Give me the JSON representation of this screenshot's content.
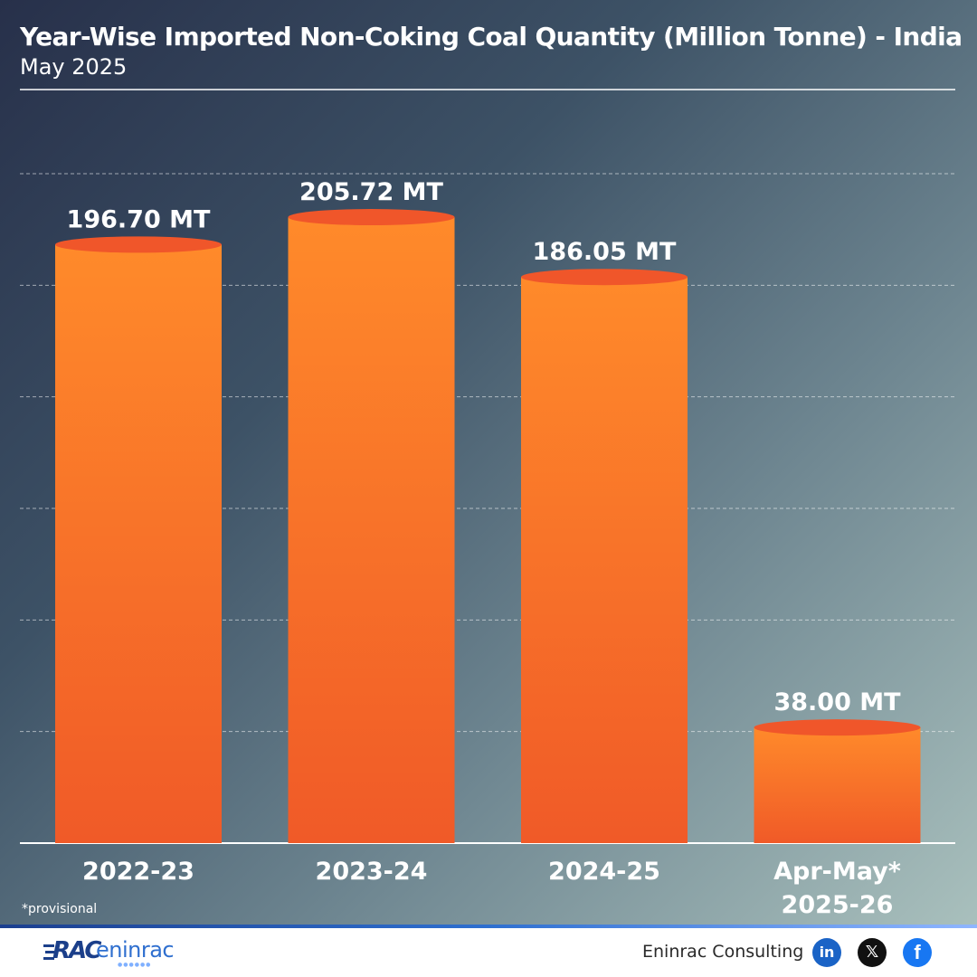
{
  "header": {
    "title": "Year-Wise Imported Non-Coking Coal Quantity (Million Tonne) - India",
    "subtitle": "May 2025"
  },
  "chart_data": {
    "type": "bar",
    "title": "Year-Wise Imported Non-Coking Coal Quantity (Million Tonne) - India",
    "subtitle": "May 2025",
    "categories": [
      "2022-23",
      "2023-24",
      "2024-25",
      "Apr-May* 2025-26"
    ],
    "category_lines": [
      [
        "2022-23"
      ],
      [
        "2023-24"
      ],
      [
        "2024-25"
      ],
      [
        "Apr-May*",
        "2025-26"
      ]
    ],
    "values": [
      196.7,
      205.72,
      186.05,
      38.0
    ],
    "value_labels": [
      "196.70 MT",
      "205.72 MT",
      "186.05 MT",
      "38.00 MT"
    ],
    "unit": "MT",
    "ylim": [
      0,
      220
    ],
    "grid": true,
    "legend": "none",
    "bar_color_top": "#ff8a2a",
    "bar_color_bottom": "#f05a28",
    "bar_cap_color": "#f0562a"
  },
  "footnote": "*provisional",
  "footer": {
    "logo_text": "RAC",
    "logo_word": "eninrac",
    "brand_name": "Eninrac Consulting",
    "social_icons": [
      "linkedin-icon",
      "x-icon",
      "facebook-icon"
    ],
    "linkedin_glyph": "in",
    "x_glyph": "𝕏",
    "facebook_glyph": "f"
  },
  "colors": {
    "accent_blue": "#1a63c6",
    "bar_orange": "#ff8a2a"
  }
}
